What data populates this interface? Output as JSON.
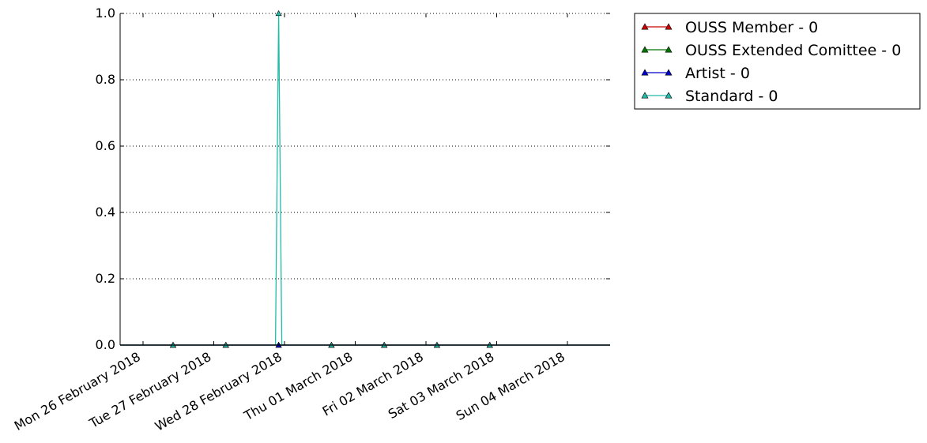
{
  "chart_data": {
    "type": "line",
    "title": "",
    "xlabel": "",
    "ylabel": "",
    "x": [
      "Mon 26 February 2018",
      "Tue 27 February 2018",
      "Wed 28 February 2018",
      "Thu 01 March 2018",
      "Fri 02 March 2018",
      "Sat 03 March 2018",
      "Sun 04 March 2018"
    ],
    "x_tick_labels": [
      "Mon 26 February 2018",
      "Tue 27 February 2018",
      "Wed 28 February 2018",
      "Thu 01 March 2018",
      "Fri 02 March 2018",
      "Sat 03 March 2018",
      "Sun 04 March 2018"
    ],
    "ylim": [
      0.0,
      1.0
    ],
    "y_ticks": [
      0.0,
      0.2,
      0.4,
      0.6,
      0.8,
      1.0
    ],
    "y_tick_labels": [
      "0.0",
      "0.2",
      "0.4",
      "0.6",
      "0.8",
      "1.0"
    ],
    "grid": true,
    "legend_position": "outside-right-top",
    "series": [
      {
        "name": "OUSS Member - 0",
        "color": "#cc0000",
        "marker": "triangle",
        "values": [
          0,
          0,
          0,
          0,
          0,
          0,
          0
        ]
      },
      {
        "name": "OUSS Extended Comittee - 0",
        "color": "#007700",
        "marker": "triangle",
        "values": [
          0,
          0,
          0,
          0,
          0,
          0,
          0
        ]
      },
      {
        "name": "Artist - 0",
        "color": "#0000cc",
        "marker": "triangle",
        "values": [
          0,
          0,
          0,
          0,
          0,
          0,
          0
        ]
      },
      {
        "name": "Standard - 0",
        "color": "#22bbaa",
        "marker": "triangle",
        "values": [
          0,
          0,
          1,
          0,
          0,
          0,
          0
        ]
      }
    ]
  }
}
